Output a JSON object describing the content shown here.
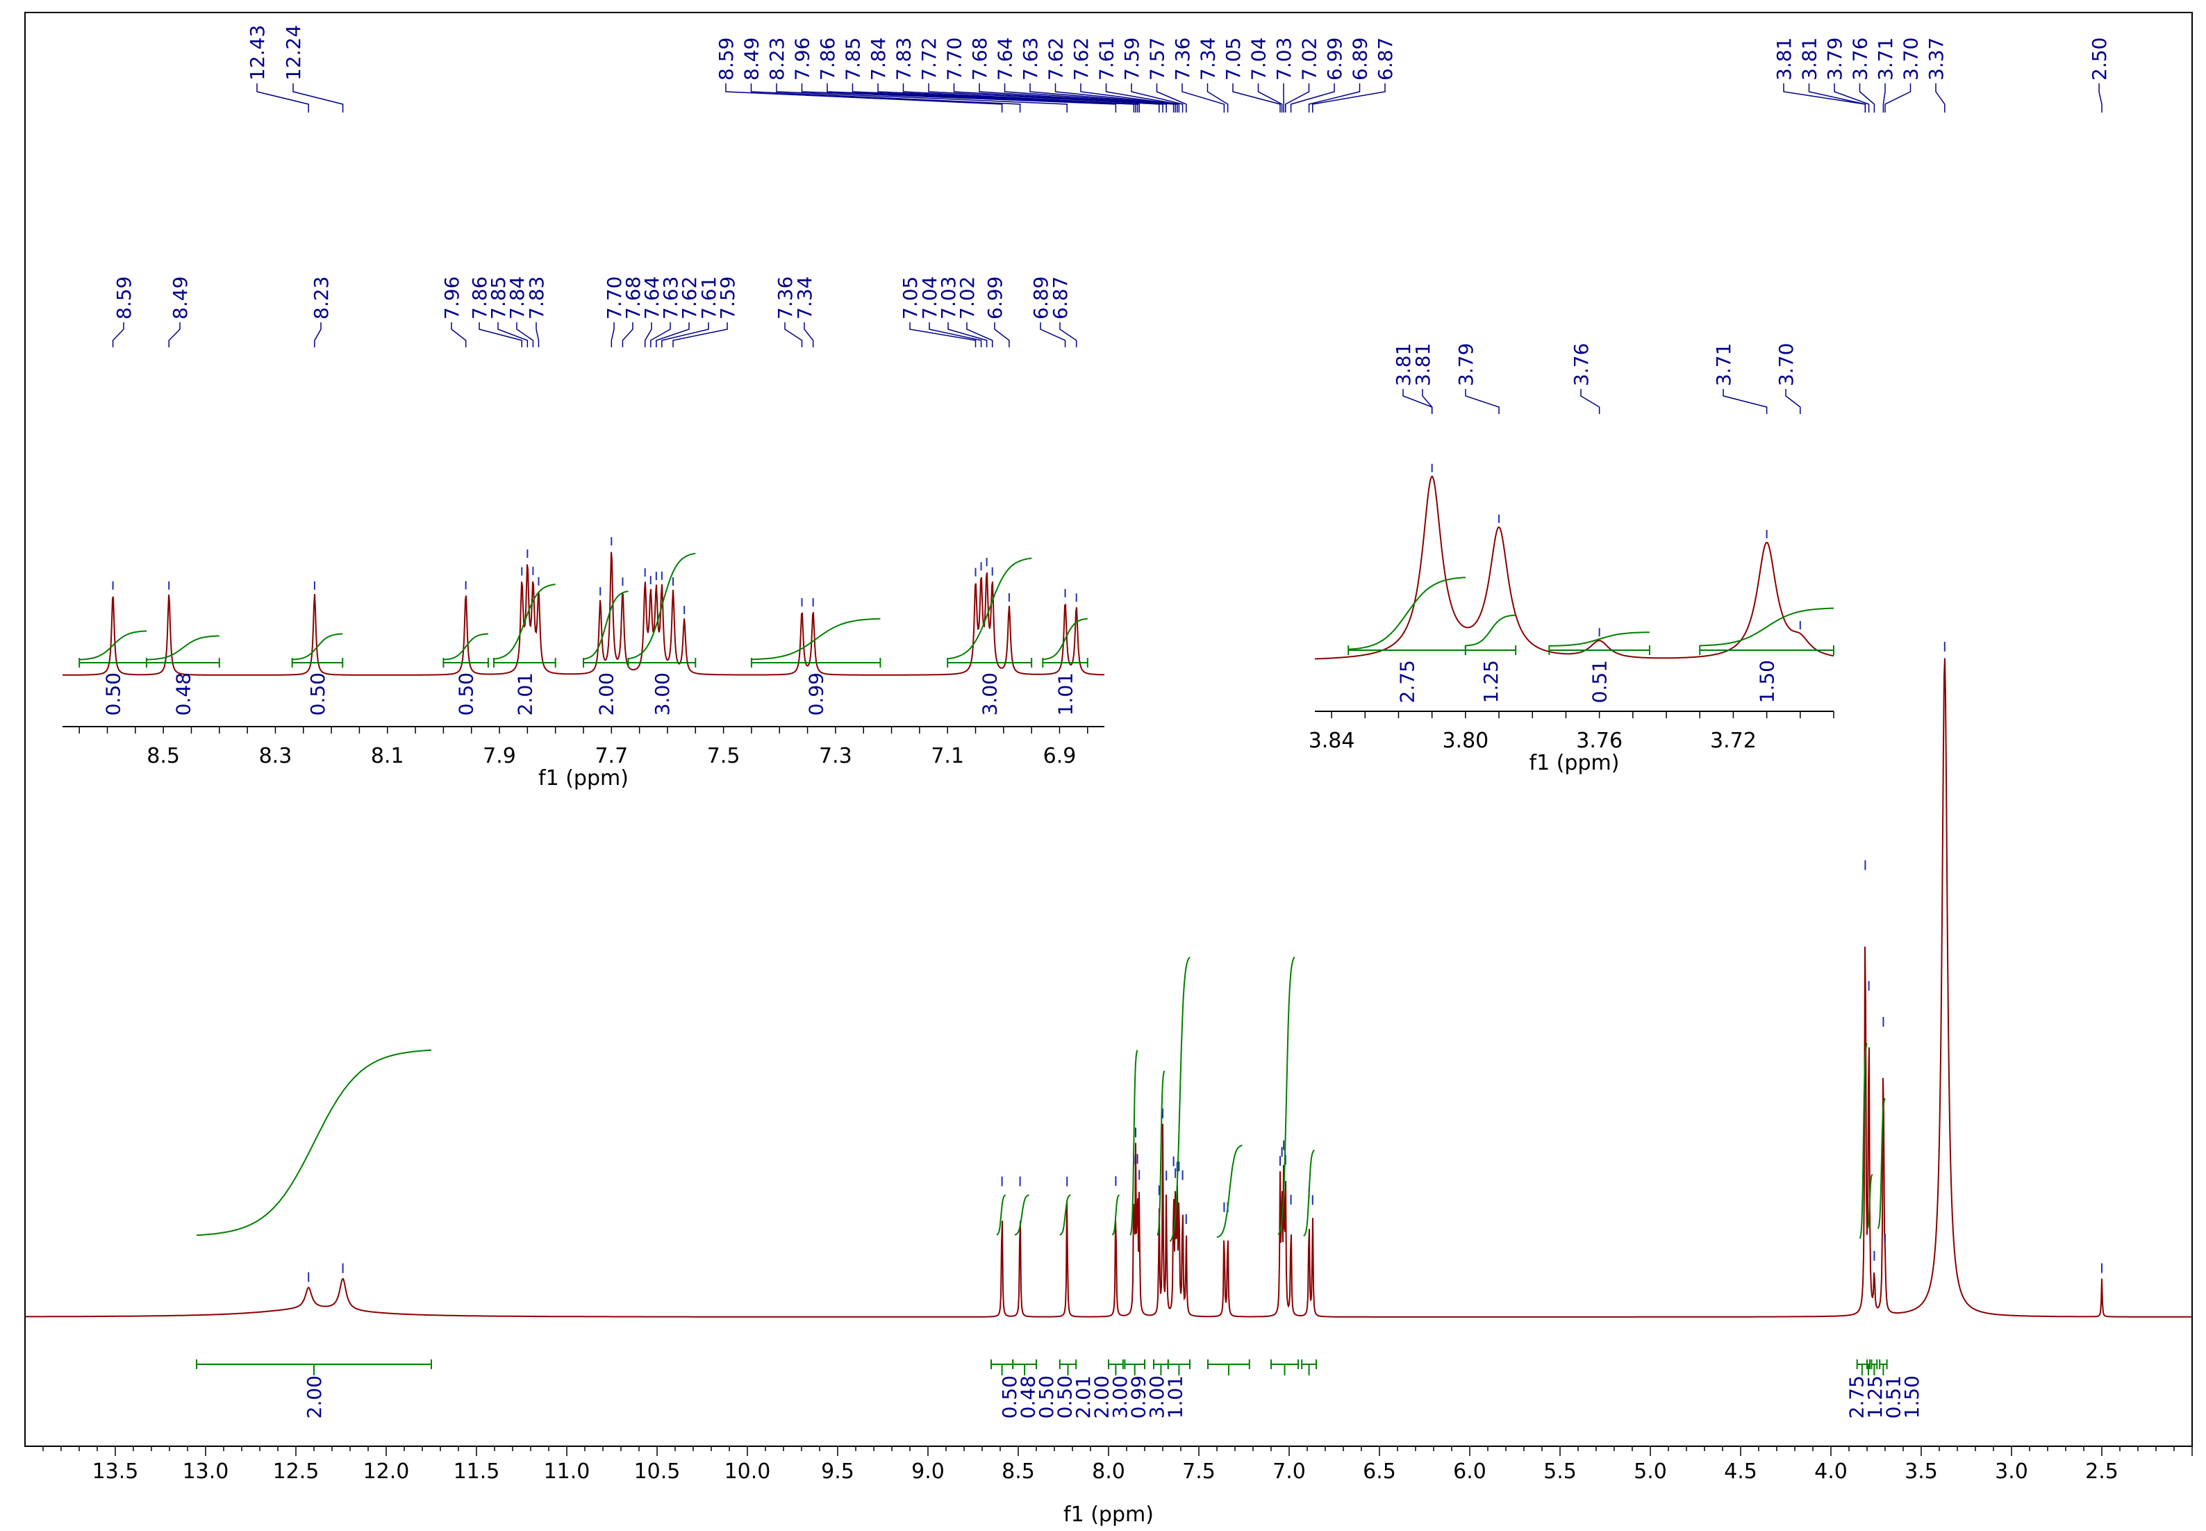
{
  "chart_data": {
    "type": "line",
    "title": "",
    "xlabel": "f1 (ppm)",
    "xlim": [
      14.0,
      2.0
    ],
    "x_ticks": [
      "13.5",
      "13.0",
      "12.5",
      "12.0",
      "11.5",
      "11.0",
      "10.5",
      "10.0",
      "9.5",
      "9.0",
      "8.5",
      "8.0",
      "7.5",
      "7.0",
      "6.5",
      "6.0",
      "5.5",
      "5.0",
      "4.5",
      "4.0",
      "3.5",
      "3.0",
      "2.5"
    ],
    "grid": false,
    "colors": {
      "spectrum": "#8b0000",
      "integral": "#008000",
      "label": "#00008b",
      "axis": "#000000"
    },
    "peaks": [
      {
        "ppm": 12.43,
        "height": 0.03
      },
      {
        "ppm": 12.24,
        "height": 0.045
      },
      {
        "ppm": 8.59,
        "height": 0.18
      },
      {
        "ppm": 8.49,
        "height": 0.18
      },
      {
        "ppm": 8.23,
        "height": 0.18
      },
      {
        "ppm": 7.96,
        "height": 0.18
      },
      {
        "ppm": 7.86,
        "height": 0.19
      },
      {
        "ppm": 7.85,
        "height": 0.22
      },
      {
        "ppm": 7.84,
        "height": 0.18
      },
      {
        "ppm": 7.83,
        "height": 0.17
      },
      {
        "ppm": 7.72,
        "height": 0.16
      },
      {
        "ppm": 7.7,
        "height": 0.27
      },
      {
        "ppm": 7.68,
        "height": 0.18
      },
      {
        "ppm": 7.64,
        "height": 0.19
      },
      {
        "ppm": 7.63,
        "height": 0.16
      },
      {
        "ppm": 7.62,
        "height": 0.17
      },
      {
        "ppm": 7.61,
        "height": 0.18
      },
      {
        "ppm": 7.59,
        "height": 0.18
      },
      {
        "ppm": 7.57,
        "height": 0.12
      },
      {
        "ppm": 7.36,
        "height": 0.14
      },
      {
        "ppm": 7.34,
        "height": 0.14
      },
      {
        "ppm": 7.05,
        "height": 0.19
      },
      {
        "ppm": 7.04,
        "height": 0.19
      },
      {
        "ppm": 7.03,
        "height": 0.2
      },
      {
        "ppm": 7.02,
        "height": 0.19
      },
      {
        "ppm": 6.99,
        "height": 0.15
      },
      {
        "ppm": 6.89,
        "height": 0.16
      },
      {
        "ppm": 6.87,
        "height": 0.15
      },
      {
        "ppm": 3.81,
        "height": 0.62
      },
      {
        "ppm": 3.79,
        "height": 0.44
      },
      {
        "ppm": 3.76,
        "height": 0.06
      },
      {
        "ppm": 3.71,
        "height": 0.4
      },
      {
        "ppm": 3.7,
        "height": 0.05
      },
      {
        "ppm": 3.37,
        "height": 0.95
      },
      {
        "ppm": 2.5,
        "height": 0.055
      }
    ],
    "top_peak_labels": [
      "12.43",
      "12.24",
      "8.59",
      "8.49",
      "8.23",
      "7.96",
      "7.86",
      "7.85",
      "7.84",
      "7.83",
      "7.72",
      "7.70",
      "7.68",
      "7.64",
      "7.63",
      "7.62",
      "7.62",
      "7.61",
      "7.59",
      "7.57",
      "7.36",
      "7.34",
      "7.05",
      "7.04",
      "7.03",
      "7.02",
      "6.99",
      "6.89",
      "6.87",
      "3.81",
      "3.81",
      "3.79",
      "3.76",
      "3.71",
      "3.70",
      "3.37",
      "2.50"
    ],
    "integrals": [
      {
        "from": 13.05,
        "to": 11.75,
        "value": "2.00"
      },
      {
        "from": 8.65,
        "to": 8.53,
        "value": "0.50"
      },
      {
        "from": 8.53,
        "to": 8.4,
        "value": "0.48"
      },
      {
        "from": 8.27,
        "to": 8.18,
        "value": "0.50"
      },
      {
        "from": 8.0,
        "to": 7.92,
        "value": "0.50"
      },
      {
        "from": 7.91,
        "to": 7.8,
        "value": "2.01"
      },
      {
        "from": 7.75,
        "to": 7.67,
        "value": "2.00"
      },
      {
        "from": 7.67,
        "to": 7.55,
        "value": "3.00"
      },
      {
        "from": 7.45,
        "to": 7.22,
        "value": "0.99"
      },
      {
        "from": 7.1,
        "to": 6.95,
        "value": "3.00"
      },
      {
        "from": 6.93,
        "to": 6.85,
        "value": "1.01"
      },
      {
        "from": 3.855,
        "to": 3.8,
        "value": "2.75"
      },
      {
        "from": 3.8,
        "to": 3.785,
        "value": "1.25"
      },
      {
        "from": 3.775,
        "to": 3.745,
        "value": "0.51"
      },
      {
        "from": 3.73,
        "to": 3.69,
        "value": "1.50"
      }
    ],
    "insets": [
      {
        "name": "aromatic",
        "xlabel": "f1 (ppm)",
        "xlim": [
          8.68,
          6.82
        ],
        "x_ticks": [
          "8.5",
          "8.3",
          "8.1",
          "7.9",
          "7.7",
          "7.5",
          "7.3",
          "7.1",
          "6.9"
        ],
        "peak_labels": [
          "8.59",
          "8.49",
          "8.23",
          "7.96",
          "7.86",
          "7.85",
          "7.84",
          "7.83",
          "7.70",
          "7.68",
          "7.64",
          "7.63",
          "7.62",
          "7.61",
          "7.59",
          "7.36",
          "7.34",
          "7.05",
          "7.04",
          "7.03",
          "7.02",
          "6.99",
          "6.89",
          "6.87"
        ],
        "integral_values": [
          "0.50",
          "0.48",
          "0.50",
          "0.50",
          "2.01",
          "2.00",
          "3.00",
          "0.99",
          "3.00",
          "1.01"
        ]
      },
      {
        "name": "methoxy",
        "xlabel": "f1 (ppm)",
        "xlim": [
          3.845,
          3.69
        ],
        "x_ticks": [
          "3.84",
          "3.80",
          "3.76",
          "3.72"
        ],
        "peak_labels": [
          "3.81",
          "3.81",
          "3.79",
          "3.76",
          "3.71",
          "3.70"
        ],
        "integral_values": [
          "2.75",
          "1.25",
          "0.51",
          "1.50"
        ]
      }
    ]
  }
}
